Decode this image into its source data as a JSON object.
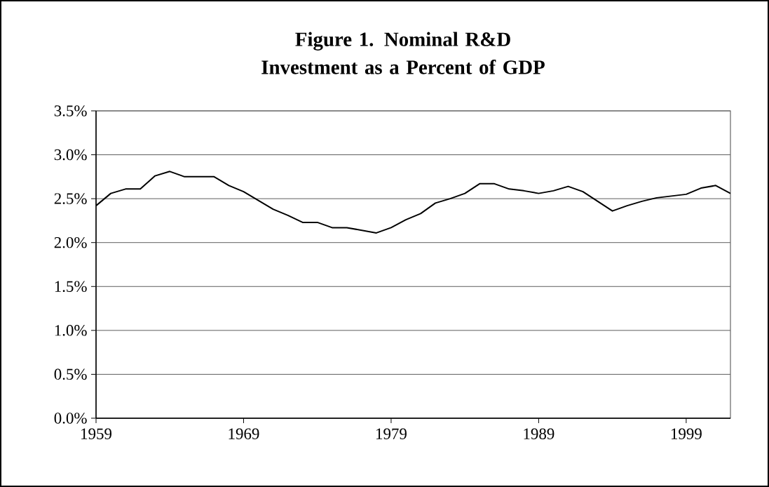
{
  "chart_data": {
    "type": "line",
    "title": "Figure 1. Nominal R&D Investment as a Percent of GDP",
    "x": [
      1959,
      1960,
      1961,
      1962,
      1963,
      1964,
      1965,
      1966,
      1967,
      1968,
      1969,
      1970,
      1971,
      1972,
      1973,
      1974,
      1975,
      1976,
      1977,
      1978,
      1979,
      1980,
      1981,
      1982,
      1983,
      1984,
      1985,
      1986,
      1987,
      1988,
      1989,
      1990,
      1991,
      1992,
      1993,
      1994,
      1995,
      1996,
      1997,
      1998,
      1999,
      2000,
      2001,
      2002
    ],
    "series": [
      {
        "color": "#000000",
        "values": [
          2.42,
          2.56,
          2.61,
          2.61,
          2.76,
          2.81,
          2.75,
          2.75,
          2.75,
          2.65,
          2.58,
          2.48,
          2.38,
          2.31,
          2.23,
          2.23,
          2.17,
          2.17,
          2.14,
          2.11,
          2.17,
          2.26,
          2.33,
          2.45,
          2.5,
          2.56,
          2.67,
          2.67,
          2.61,
          2.59,
          2.56,
          2.59,
          2.64,
          2.58,
          2.47,
          2.36,
          2.42,
          2.47,
          2.51,
          2.53,
          2.55,
          2.62,
          2.65,
          2.56
        ]
      }
    ],
    "xlim": [
      1959,
      2002
    ],
    "xticks": [
      1959,
      1969,
      1979,
      1989,
      1999
    ],
    "ylim": [
      0,
      3.5
    ],
    "yticks": [
      {
        "value": 0,
        "label": "0.0%"
      },
      {
        "value": 0.5,
        "label": "0.5%"
      },
      {
        "value": 1,
        "label": "1.0%"
      },
      {
        "value": 1.5,
        "label": "1.5%"
      },
      {
        "value": 2,
        "label": "2.0%"
      },
      {
        "value": 2.5,
        "label": "2.5%"
      },
      {
        "value": 3,
        "label": "3.0%"
      },
      {
        "value": 3.5,
        "label": "3.5%"
      }
    ],
    "grid": "y",
    "marker": "none",
    "line_style": "solid"
  }
}
